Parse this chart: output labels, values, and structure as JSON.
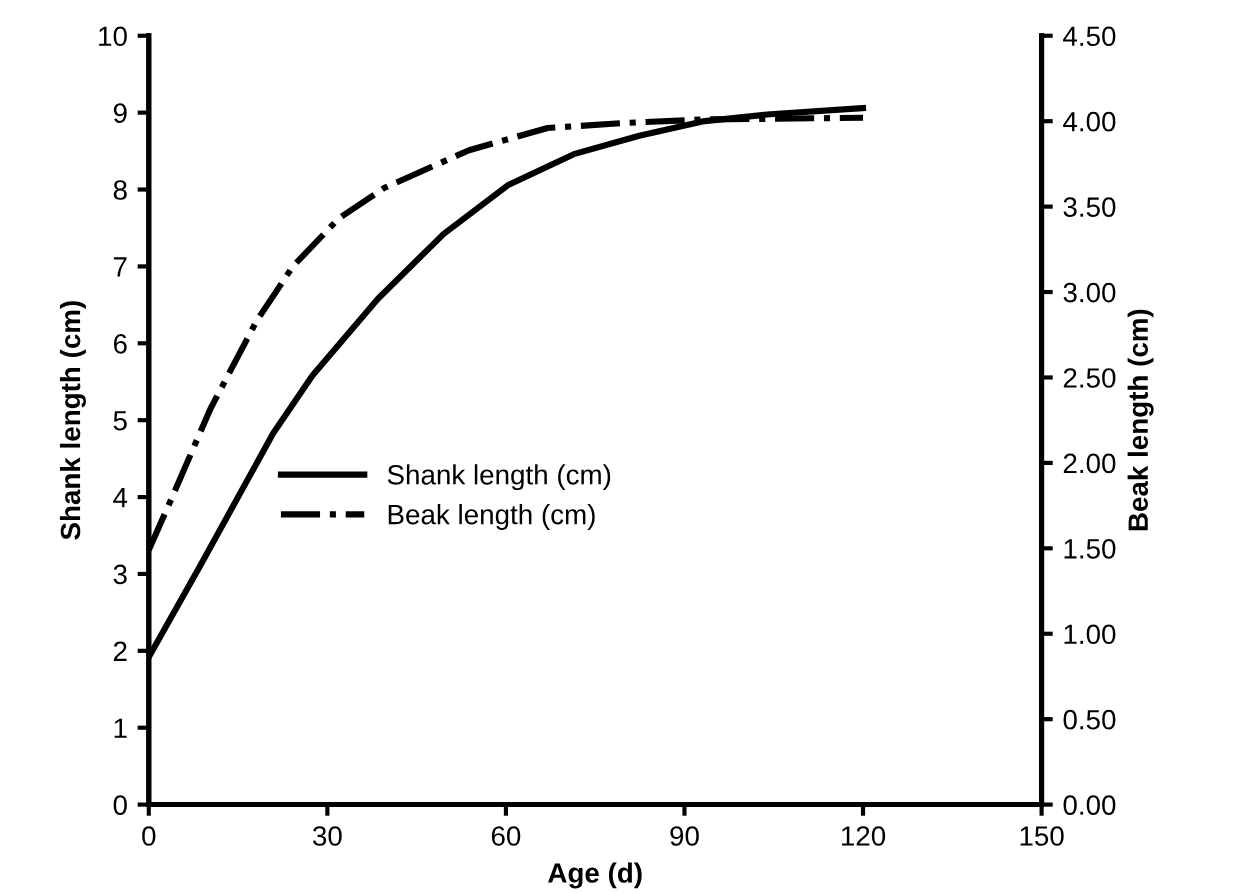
{
  "chart_data": {
    "type": "line",
    "xlabel": "Age (d)",
    "ylabel": "Shank length (cm)",
    "y2label": "Beak length (cm)",
    "xlim": [
      0,
      150
    ],
    "xticks": [
      0,
      30,
      60,
      90,
      120,
      150
    ],
    "ylim": [
      0,
      10
    ],
    "yticks": [
      0,
      1,
      2,
      3,
      4,
      5,
      6,
      7,
      8,
      9,
      10
    ],
    "y2lim": [
      0,
      4.5
    ],
    "y2ticks": [
      {
        "value": 0,
        "label": "0.00"
      },
      {
        "value": 0.5,
        "label": "0.50"
      },
      {
        "value": 1,
        "label": "1.00"
      },
      {
        "value": 1.5,
        "label": "1.50"
      },
      {
        "value": 2,
        "label": "2.00"
      },
      {
        "value": 2.5,
        "label": "2.50"
      },
      {
        "value": 3,
        "label": "3.00"
      },
      {
        "value": 3.5,
        "label": "3.50"
      },
      {
        "value": 4,
        "label": "4.00"
      },
      {
        "value": 4.5,
        "label": "4.50"
      }
    ],
    "grid": false,
    "legend": "center left",
    "marker": "none",
    "series": [
      {
        "name": "Shank length (cm)",
        "color": "#000000",
        "line_style": "solid",
        "x": [
          0,
          8.8,
          20.9,
          27.5,
          38.5,
          49.5,
          60.4,
          71.4,
          82.4,
          93.4,
          104.4,
          120
        ],
        "values": [
          1.92,
          3.13,
          4.83,
          5.58,
          6.58,
          7.42,
          8.06,
          8.46,
          8.7,
          8.89,
          8.98,
          9.06
        ]
      },
      {
        "name": "Beak length (cm)",
        "color": "#000000",
        "line_style": "dashdot",
        "axis": "y2",
        "x": [
          0,
          3.8,
          10.4,
          18.1,
          24.2,
          31.9,
          39.6,
          53.8,
          67,
          80.2,
          93.4,
          120
        ],
        "values": [
          1.49,
          1.79,
          2.32,
          2.83,
          3.15,
          3.43,
          3.61,
          3.83,
          3.96,
          3.99,
          4.01,
          4.02
        ]
      }
    ]
  }
}
